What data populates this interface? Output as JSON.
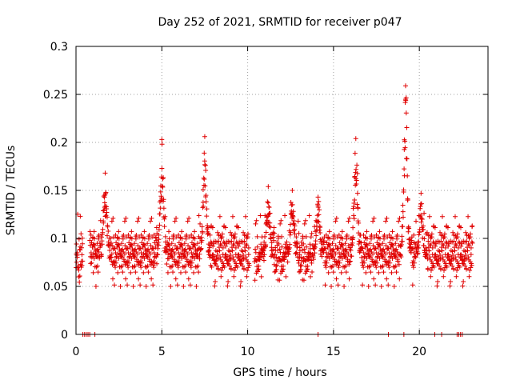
{
  "chart_data": {
    "type": "scatter",
    "title": "Day 252 of 2021, SRMTID for receiver p047",
    "xlabel": "GPS time / hours",
    "ylabel": "SRMTID / TECUs",
    "xlim": [
      0,
      24
    ],
    "ylim": [
      0,
      0.3
    ],
    "x_ticks": [
      0,
      5,
      10,
      15,
      20
    ],
    "x_tick_labels": [
      "0",
      "5",
      "10",
      "15",
      "20"
    ],
    "y_ticks": [
      0,
      0.05,
      0.1,
      0.15,
      0.2,
      0.25,
      0.3
    ],
    "y_tick_labels": [
      "0",
      "0.05",
      "0.1",
      "0.15",
      "0.2",
      "0.25",
      "0.3"
    ],
    "grid": true,
    "marker": "plus",
    "series_color": "#e00000",
    "data_span_hours": [
      0,
      23.1
    ],
    "baseline_band": [
      0.03,
      0.11
    ],
    "gap_intervals": [
      [
        0.4,
        0.8
      ],
      [
        10.1,
        10.4
      ]
    ],
    "peak_events": [
      {
        "hour": 1.7,
        "peak": 0.168
      },
      {
        "hour": 5.0,
        "peak": 0.203
      },
      {
        "hour": 7.5,
        "peak": 0.206
      },
      {
        "hour": 11.2,
        "peak": 0.154
      },
      {
        "hour": 12.6,
        "peak": 0.15
      },
      {
        "hour": 14.1,
        "peak": 0.143
      },
      {
        "hour": 16.3,
        "peak": 0.204
      },
      {
        "hour": 19.2,
        "peak": 0.259
      },
      {
        "hour": 20.1,
        "peak": 0.147
      }
    ],
    "zero_points_x": [
      0.4,
      0.5,
      0.6,
      0.7,
      0.8,
      1.1,
      14.1,
      18.2,
      19.1,
      20.9,
      21.3,
      22.2,
      22.3,
      22.4,
      22.5
    ]
  }
}
